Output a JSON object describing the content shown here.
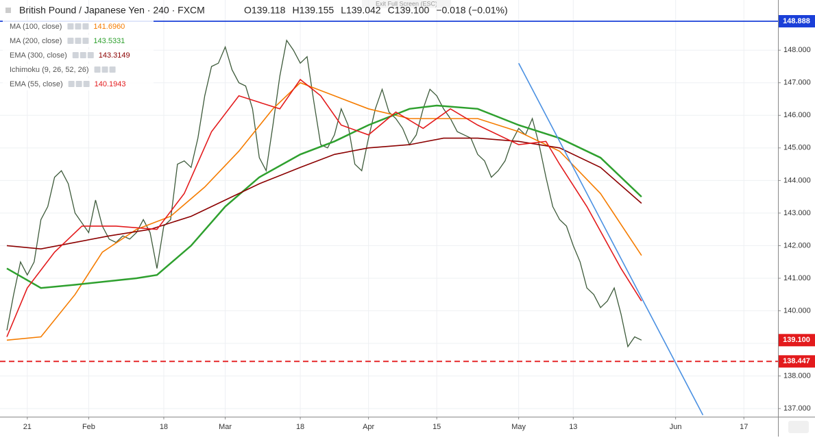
{
  "chart_data": {
    "type": "line",
    "title": "British Pound / Japanese Yen · 240 · FXCM",
    "ohlc": [
      "O139.118",
      "H139.155",
      "L139.042",
      "C139.100",
      "−0.018 (−0.01%)"
    ],
    "banner": "Exit Full Screen (ESC)",
    "indicators": [
      {
        "name": "MA (100, close)",
        "value": "141.6960",
        "color": "#f57c00"
      },
      {
        "name": "MA (200, close)",
        "value": "143.5331",
        "color": "#2ea02e"
      },
      {
        "name": "EMA (300, close)",
        "value": "143.3149",
        "color": "#8b0000"
      },
      {
        "name": "Ichimoku (9, 26, 52, 26)",
        "value": null,
        "color": "#999999"
      },
      {
        "name": "EMA (55, close)",
        "value": "140.1943",
        "color": "#e31a1c"
      }
    ],
    "xlim": [
      -4,
      110
    ],
    "xticks": [
      {
        "value": 0,
        "label": "21"
      },
      {
        "value": 9,
        "label": "Feb"
      },
      {
        "value": 20,
        "label": "18"
      },
      {
        "value": 29,
        "label": "Mar"
      },
      {
        "value": 40,
        "label": "18"
      },
      {
        "value": 50,
        "label": "Apr"
      },
      {
        "value": 60,
        "label": "15"
      },
      {
        "value": 72,
        "label": "May"
      },
      {
        "value": 80,
        "label": "13"
      },
      {
        "value": 95,
        "label": "Jun"
      },
      {
        "value": 105,
        "label": "17"
      }
    ],
    "ylim": [
      136.75,
      149.54
    ],
    "yticks": [
      {
        "value": 137,
        "label": "137.000"
      },
      {
        "value": 138,
        "label": "138.000"
      },
      {
        "value": 139,
        "label": "139.000"
      },
      {
        "value": 140,
        "label": "140.000"
      },
      {
        "value": 141,
        "label": "141.000"
      },
      {
        "value": 142,
        "label": "142.000"
      },
      {
        "value": 143,
        "label": "143.000"
      },
      {
        "value": 144,
        "label": "144.000"
      },
      {
        "value": 145,
        "label": "145.000"
      },
      {
        "value": 146,
        "label": "146.000"
      },
      {
        "value": 147,
        "label": "147.000"
      },
      {
        "value": 148,
        "label": "148.000"
      }
    ],
    "series": [
      {
        "name": "GBP/JPY",
        "color": "#3d5a3a",
        "x": [
          -3,
          -2,
          -1,
          0,
          1,
          2,
          3,
          4,
          5,
          6,
          7,
          8,
          9,
          10,
          11,
          12,
          13,
          14,
          15,
          16,
          17,
          18,
          19,
          20,
          21,
          22,
          23,
          24,
          25,
          26,
          27,
          28,
          29,
          30,
          31,
          32,
          33,
          34,
          35,
          36,
          37,
          38,
          39,
          40,
          41,
          42,
          43,
          44,
          45,
          46,
          47,
          48,
          49,
          50,
          51,
          52,
          53,
          54,
          55,
          56,
          57,
          58,
          59,
          60,
          61,
          62,
          63,
          64,
          65,
          66,
          67,
          68,
          69,
          70,
          71,
          72,
          73,
          74,
          75,
          76,
          77,
          78,
          79,
          80,
          81,
          82,
          83,
          84,
          85,
          86,
          87,
          88,
          89,
          90
        ],
        "values": [
          139.4,
          140.5,
          141.5,
          141.1,
          141.5,
          142.8,
          143.2,
          144.1,
          144.3,
          143.9,
          143.0,
          142.7,
          142.4,
          143.4,
          142.6,
          142.2,
          142.1,
          142.3,
          142.2,
          142.4,
          142.8,
          142.4,
          141.3,
          142.6,
          142.8,
          144.5,
          144.6,
          144.4,
          145.3,
          146.6,
          147.5,
          147.6,
          148.1,
          147.4,
          147.0,
          146.9,
          146.2,
          144.7,
          144.3,
          145.7,
          147.2,
          148.3,
          148.0,
          147.6,
          147.8,
          146.4,
          145.1,
          145.0,
          145.4,
          146.2,
          145.7,
          144.5,
          144.3,
          145.3,
          146.2,
          146.8,
          146.1,
          145.9,
          145.6,
          145.1,
          145.4,
          146.2,
          146.8,
          146.6,
          146.2,
          145.9,
          145.5,
          145.4,
          145.3,
          144.8,
          144.6,
          144.1,
          144.3,
          144.6,
          145.2,
          145.6,
          145.4,
          145.9,
          145.1,
          144.1,
          143.2,
          142.8,
          142.6,
          142.0,
          141.5,
          140.7,
          140.5,
          140.1,
          140.3,
          140.7,
          139.9,
          138.9,
          139.2,
          139.1
        ]
      },
      {
        "name": "MA (100, close)",
        "color": "#f57c00",
        "x": [
          -3,
          2,
          7,
          11,
          16,
          21,
          26,
          31,
          36,
          40,
          45,
          50,
          56,
          61,
          66,
          72,
          78,
          84,
          90
        ],
        "values": [
          139.1,
          139.2,
          140.5,
          141.8,
          142.5,
          142.9,
          143.8,
          144.9,
          146.2,
          147.0,
          146.6,
          146.2,
          145.9,
          145.9,
          145.9,
          145.5,
          144.9,
          143.6,
          141.7
        ]
      },
      {
        "name": "MA (200, close)",
        "color": "#2ea02e",
        "x": [
          -3,
          2,
          7,
          16,
          19,
          24,
          29,
          34,
          40,
          45,
          50,
          56,
          60,
          66,
          72,
          78,
          84,
          90
        ],
        "values": [
          141.3,
          140.7,
          140.8,
          141.0,
          141.1,
          142.0,
          143.2,
          144.1,
          144.8,
          145.2,
          145.7,
          146.2,
          146.3,
          146.2,
          145.7,
          145.3,
          144.7,
          143.5
        ]
      },
      {
        "name": "EMA (300, close)",
        "color": "#8b0000",
        "x": [
          -3,
          2,
          7,
          12,
          18,
          24,
          29,
          34,
          40,
          45,
          50,
          56,
          61,
          66,
          72,
          78,
          84,
          90
        ],
        "values": [
          142.0,
          141.9,
          142.1,
          142.3,
          142.5,
          142.9,
          143.4,
          143.9,
          144.4,
          144.8,
          145.0,
          145.1,
          145.3,
          145.3,
          145.2,
          145.0,
          144.4,
          143.3
        ]
      },
      {
        "name": "EMA (55, close)",
        "color": "#e31a1c",
        "x": [
          -3,
          0,
          4,
          8,
          13,
          19,
          23,
          27,
          31,
          34,
          37,
          40,
          43,
          46,
          50,
          54,
          58,
          62,
          66,
          72,
          76,
          78,
          82,
          87,
          90
        ],
        "values": [
          139.2,
          140.7,
          141.8,
          142.6,
          142.6,
          142.5,
          143.6,
          145.5,
          146.6,
          146.4,
          146.2,
          147.1,
          146.6,
          145.7,
          145.4,
          146.1,
          145.6,
          146.2,
          145.7,
          145.1,
          145.2,
          144.5,
          143.2,
          141.3,
          140.3
        ]
      }
    ],
    "trendline": {
      "color": "#4a90e2",
      "x": [
        72,
        99
      ],
      "values": [
        147.6,
        136.8
      ]
    },
    "levels": [
      {
        "value": 148.888,
        "color": "#1a3fd8",
        "style": "solid"
      },
      {
        "value": 138.447,
        "color": "#e31a1c",
        "style": "dashed"
      }
    ],
    "last_price": {
      "value": 139.1,
      "label": "139.100",
      "color": "#e31a1c"
    }
  }
}
